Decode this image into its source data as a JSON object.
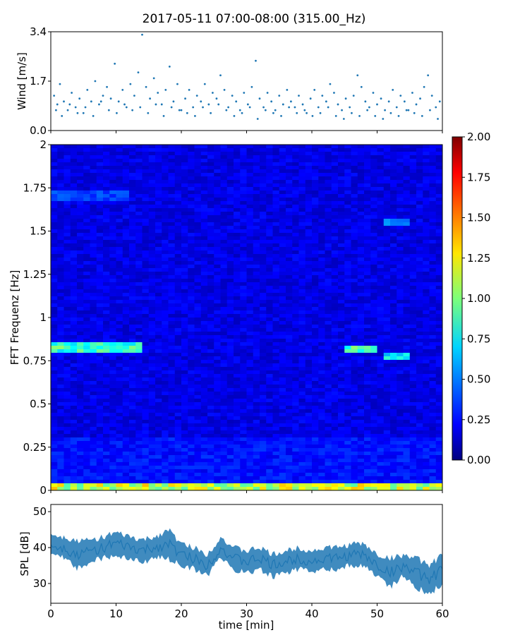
{
  "figure": {
    "title": "2017-05-11 07:00-08:00 (315.00_Hz)"
  },
  "chart_data": [
    {
      "type": "scatter",
      "panel": "wind",
      "ylabel": "Wind [m/s]",
      "xlim": [
        0,
        60
      ],
      "ylim": [
        0,
        3.4
      ],
      "yticks": [
        "0.0",
        "1.7",
        "3.4"
      ],
      "color": "#1f77b4",
      "series": [
        {
          "x": [
            0.5,
            1.0,
            1.4,
            2.0,
            2.6,
            3.2,
            3.8,
            4.4,
            5.0,
            5.6,
            6.2,
            6.8,
            7.4,
            8.0,
            8.6,
            9.2,
            9.8,
            10.4,
            11.0,
            11.6,
            12.2,
            12.8,
            13.4,
            14.0,
            14.6,
            15.2,
            15.8,
            16.4,
            17.0,
            17.6,
            18.2,
            18.8,
            19.4,
            20.0,
            20.6,
            21.2,
            21.8,
            22.4,
            23.0,
            23.6,
            24.2,
            24.8,
            25.4,
            26.0,
            26.6,
            27.2,
            27.8,
            28.4,
            29.0,
            29.6,
            30.2,
            30.8,
            31.4,
            32.0,
            32.6,
            33.2,
            33.8,
            34.4,
            35.0,
            35.6,
            36.2,
            36.8,
            37.4,
            38.0,
            38.6,
            39.2,
            39.8,
            40.4,
            41.0,
            41.6,
            42.2,
            42.8,
            43.4,
            44.0,
            44.6,
            45.2,
            45.8,
            46.4,
            47.0,
            47.6,
            48.2,
            48.8,
            49.4,
            50.0,
            50.6,
            51.2,
            51.8,
            52.4,
            53.0,
            53.6,
            54.2,
            54.8,
            55.4,
            56.0,
            56.6,
            57.2,
            57.8,
            58.4,
            59.0,
            59.6
          ],
          "y": [
            1.2,
            0.9,
            1.6,
            1.0,
            0.7,
            1.3,
            0.8,
            1.1,
            0.6,
            1.4,
            1.0,
            1.7,
            0.9,
            1.2,
            1.5,
            1.1,
            2.3,
            1.0,
            1.4,
            0.8,
            1.6,
            1.2,
            2.0,
            3.3,
            1.5,
            1.1,
            1.8,
            1.3,
            0.9,
            1.4,
            2.2,
            1.0,
            1.6,
            0.7,
            1.1,
            1.4,
            0.8,
            1.2,
            1.0,
            1.6,
            0.9,
            1.3,
            1.1,
            1.9,
            1.4,
            0.8,
            1.2,
            1.0,
            0.7,
            1.3,
            0.9,
            1.5,
            2.4,
            1.1,
            0.8,
            1.3,
            1.0,
            0.7,
            1.2,
            0.9,
            1.4,
            1.0,
            0.8,
            1.2,
            0.9,
            0.6,
            1.1,
            1.4,
            0.8,
            1.2,
            1.0,
            1.6,
            1.3,
            0.9,
            0.7,
            1.1,
            0.8,
            1.2,
            1.9,
            1.5,
            1.0,
            0.8,
            1.3,
            0.9,
            1.1,
            0.7,
            1.0,
            1.4,
            0.8,
            1.2,
            1.0,
            0.7,
            1.3,
            0.9,
            1.1,
            1.5,
            1.9,
            1.2,
            0.8,
            1.0
          ]
        },
        {
          "x": [
            0.8,
            1.7,
            2.9,
            4.1,
            5.3,
            6.5,
            7.7,
            8.9,
            10.1,
            11.3,
            12.5,
            13.7,
            14.9,
            16.1,
            17.3,
            18.5,
            19.7,
            20.9,
            22.1,
            23.3,
            24.5,
            25.7,
            26.9,
            28.1,
            29.3,
            30.5,
            31.7,
            32.9,
            34.1,
            35.3,
            36.5,
            37.7,
            38.9,
            40.1,
            41.3,
            42.5,
            43.7,
            44.9,
            46.1,
            47.3,
            48.5,
            49.7,
            50.9,
            52.1,
            53.3,
            54.5,
            55.7,
            56.9,
            58.1,
            59.3
          ],
          "y": [
            0.7,
            0.5,
            0.9,
            0.6,
            0.8,
            0.5,
            1.0,
            0.7,
            0.6,
            0.9,
            0.7,
            0.8,
            0.6,
            0.9,
            0.5,
            0.8,
            0.7,
            0.6,
            0.5,
            0.8,
            0.6,
            0.9,
            0.7,
            0.5,
            0.6,
            0.8,
            0.4,
            0.7,
            0.6,
            0.5,
            0.8,
            0.6,
            0.7,
            0.5,
            0.6,
            0.8,
            0.5,
            0.4,
            0.6,
            0.5,
            0.7,
            0.5,
            0.4,
            0.6,
            0.5,
            0.7,
            0.6,
            0.5,
            0.7,
            0.4
          ]
        }
      ]
    },
    {
      "type": "heatmap",
      "panel": "spectrogram",
      "ylabel": "FFT Frequenz [Hz]",
      "xlim": [
        0,
        60
      ],
      "ylim": [
        0,
        2
      ],
      "yticks": [
        "0",
        "0.25",
        "0.5",
        "0.75",
        "1",
        "1.25",
        "1.5",
        "1.75",
        "2"
      ],
      "colormap": "jet",
      "colorbar": {
        "min": 0.0,
        "max": 2.0,
        "ticks": [
          "0.00",
          "0.25",
          "0.50",
          "0.75",
          "1.00",
          "1.25",
          "1.50",
          "1.75",
          "2.00"
        ]
      },
      "features": [
        {
          "freq": 0.83,
          "from": 0,
          "to": 14,
          "value": 0.9
        },
        {
          "freq": 0.82,
          "from": 45,
          "to": 50,
          "value": 0.9
        },
        {
          "freq": 0.78,
          "from": 51,
          "to": 55,
          "value": 0.8
        },
        {
          "freq": 0.02,
          "from": 0,
          "to": 60,
          "value": 1.2
        },
        {
          "freq": 1.55,
          "from": 51,
          "to": 55,
          "value": 0.5
        },
        {
          "freq": 1.7,
          "from": 0,
          "to": 12,
          "value": 0.4
        }
      ]
    },
    {
      "type": "area",
      "panel": "spl",
      "ylabel": "SPL [dB]",
      "xlabel": "time [min]",
      "xlim": [
        0,
        60
      ],
      "ylim": [
        24.5,
        52
      ],
      "yticks": [
        "30",
        "40",
        "50"
      ],
      "xticks": [
        "0",
        "10",
        "20",
        "30",
        "40",
        "50",
        "60"
      ],
      "color": "#1f77b4",
      "x": [
        0,
        2,
        4,
        6,
        8,
        10,
        12,
        14,
        16,
        18,
        20,
        22,
        24,
        26,
        28,
        30,
        32,
        34,
        36,
        38,
        40,
        42,
        44,
        46,
        48,
        50,
        52,
        54,
        56,
        58,
        60
      ],
      "y": [
        41,
        40,
        38,
        39,
        40,
        41,
        40,
        39,
        40,
        41,
        38,
        37,
        35,
        40,
        37,
        36,
        37,
        35,
        36,
        37,
        36,
        37,
        37,
        38,
        38,
        35,
        33,
        35,
        33,
        31,
        34
      ],
      "spread": [
        3,
        3,
        4,
        3,
        3,
        3,
        3,
        3,
        3,
        4,
        3,
        3,
        3,
        3,
        3,
        3,
        3,
        3,
        3,
        3,
        3,
        3,
        3,
        3,
        3,
        3,
        4,
        3,
        4,
        4,
        4
      ]
    }
  ]
}
